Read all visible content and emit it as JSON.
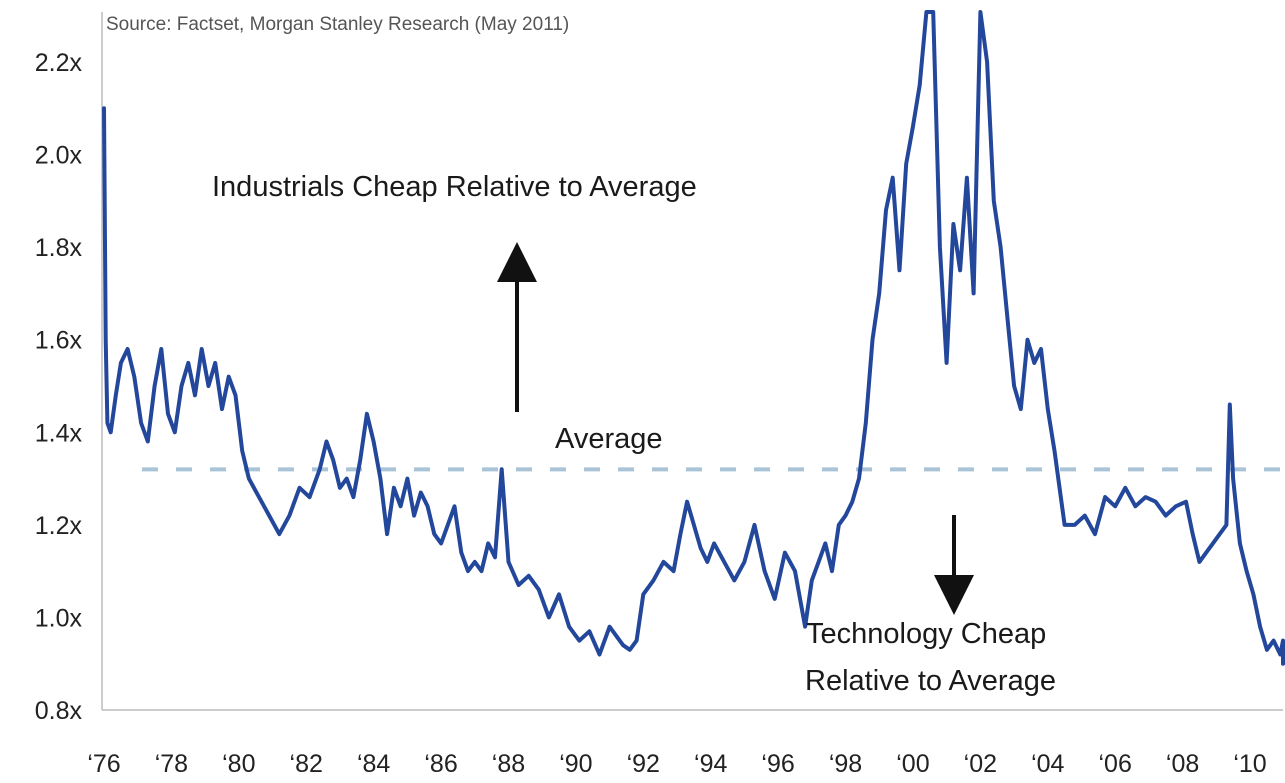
{
  "chart_data": {
    "type": "line",
    "source": "Source: Factset, Morgan Stanley Research (May 2011)",
    "xlabel": "",
    "ylabel": "",
    "x_range": [
      1976.0,
      2011.3
    ],
    "ylim": [
      0.8,
      2.3
    ],
    "y_ticks": [
      2.2,
      2.0,
      1.8,
      1.6,
      1.4,
      1.2,
      1.0,
      0.8
    ],
    "y_tick_labels": [
      "2.2x",
      "2.0x",
      "1.8x",
      "1.6x",
      "1.4x",
      "1.2x",
      "1.0x",
      "0.8x"
    ],
    "x_ticks": [
      1976,
      1978,
      1980,
      1982,
      1984,
      1986,
      1988,
      1990,
      1992,
      1994,
      1996,
      1998,
      2000,
      2002,
      2004,
      2006,
      2008,
      2010
    ],
    "x_tick_labels": [
      "‘76",
      "‘78",
      "‘80",
      "‘82",
      "‘84",
      "‘86",
      "‘88",
      "‘90",
      "‘92",
      "‘94",
      "‘96",
      "‘98",
      "‘00",
      "‘02",
      "‘04",
      "‘06",
      "‘08",
      "‘10"
    ],
    "average": 1.32,
    "line_color": "#23479b",
    "average_color": "#a9c4d6",
    "annotations": {
      "industrials": "Industrials Cheap Relative to Average",
      "average": "Average",
      "technology_line1": "Technology Cheap",
      "technology_line2": "Relative to Average"
    },
    "series": [
      {
        "x": [
          1976.0,
          1976.05,
          1976.1,
          1976.2,
          1976.35,
          1976.5,
          1976.7,
          1976.9,
          1977.1,
          1977.3,
          1977.5,
          1977.7,
          1977.9,
          1978.1,
          1978.3,
          1978.5,
          1978.7,
          1978.9,
          1979.1,
          1979.3,
          1979.5,
          1979.7,
          1979.9,
          1980.1,
          1980.3,
          1980.6,
          1980.9,
          1981.2,
          1981.5,
          1981.8,
          1982.1,
          1982.4,
          1982.6,
          1982.8,
          1983.0,
          1983.2,
          1983.4,
          1983.6,
          1983.8,
          1984.0,
          1984.2,
          1984.4,
          1984.6,
          1984.8,
          1985.0,
          1985.2,
          1985.4,
          1985.6,
          1985.8,
          1986.0,
          1986.2,
          1986.4,
          1986.6,
          1986.8,
          1987.0,
          1987.2,
          1987.4,
          1987.6,
          1987.8,
          1988.0,
          1988.3,
          1988.6,
          1988.9,
          1989.2,
          1989.5,
          1989.8,
          1990.1,
          1990.4,
          1990.7,
          1991.0,
          1991.2,
          1991.4,
          1991.6,
          1991.8,
          1992.0,
          1992.3,
          1992.6,
          1992.9,
          1993.1,
          1993.3,
          1993.5,
          1993.7,
          1993.9,
          1994.1,
          1994.4,
          1994.7,
          1995.0,
          1995.3,
          1995.6,
          1995.9,
          1996.2,
          1996.5,
          1996.8,
          1997.0,
          1997.2,
          1997.4,
          1997.6,
          1997.8,
          1998.0,
          1998.2,
          1998.4,
          1998.6,
          1998.8,
          1999.0,
          1999.2,
          1999.4,
          1999.6,
          1999.8,
          2000.0,
          2000.2,
          2000.4,
          2000.6,
          2000.8,
          2001.0,
          2001.2,
          2001.4,
          2001.6,
          2001.8,
          2002.0,
          2002.2,
          2002.4,
          2002.6,
          2002.8,
          2003.0,
          2003.2,
          2003.4,
          2003.6,
          2003.8,
          2004.0,
          2004.2,
          2004.5,
          2004.8,
          2005.1,
          2005.4,
          2005.7,
          2006.0,
          2006.3,
          2006.6,
          2006.9,
          2007.2,
          2007.5,
          2007.8,
          2008.1,
          2008.3,
          2008.5,
          2008.7,
          2008.9,
          2009.1,
          2009.3,
          2009.4,
          2009.5,
          2009.7,
          2009.9,
          2010.1,
          2010.3,
          2010.5,
          2010.7,
          2010.9,
          2011.1,
          2011.3
        ],
        "values": [
          2.1,
          1.6,
          1.42,
          1.4,
          1.48,
          1.55,
          1.58,
          1.52,
          1.42,
          1.38,
          1.5,
          1.58,
          1.44,
          1.4,
          1.5,
          1.55,
          1.48,
          1.58,
          1.5,
          1.55,
          1.45,
          1.52,
          1.48,
          1.36,
          1.3,
          1.26,
          1.22,
          1.18,
          1.22,
          1.28,
          1.26,
          1.32,
          1.38,
          1.34,
          1.28,
          1.3,
          1.26,
          1.34,
          1.44,
          1.38,
          1.3,
          1.18,
          1.28,
          1.24,
          1.3,
          1.22,
          1.27,
          1.24,
          1.18,
          1.16,
          1.2,
          1.24,
          1.14,
          1.1,
          1.12,
          1.1,
          1.16,
          1.13,
          1.32,
          1.12,
          1.07,
          1.09,
          1.06,
          1.0,
          1.05,
          0.98,
          0.95,
          0.97,
          0.92,
          0.98,
          0.96,
          0.94,
          0.93,
          0.95,
          1.05,
          1.08,
          1.12,
          1.1,
          1.18,
          1.25,
          1.2,
          1.15,
          1.12,
          1.16,
          1.12,
          1.08,
          1.12,
          1.2,
          1.1,
          1.04,
          1.14,
          1.1,
          0.98,
          1.08,
          1.12,
          1.16,
          1.1,
          1.2,
          1.22,
          1.25,
          1.3,
          1.42,
          1.6,
          1.7,
          1.88,
          1.95,
          1.75,
          1.98,
          2.06,
          2.15,
          2.35,
          2.45,
          1.8,
          1.55,
          1.85,
          1.75,
          1.95,
          1.7,
          2.35,
          2.2,
          1.9,
          1.8,
          1.65,
          1.5,
          1.45,
          1.6,
          1.55,
          1.58,
          1.45,
          1.36,
          1.2,
          1.2,
          1.22,
          1.18,
          1.26,
          1.24,
          1.28,
          1.24,
          1.26,
          1.25,
          1.22,
          1.24,
          1.25,
          1.18,
          1.12,
          1.14,
          1.16,
          1.18,
          1.2,
          1.46,
          1.3,
          1.16,
          1.1,
          1.05,
          0.98,
          0.93,
          0.95,
          0.92,
          0.95,
          0.9
        ]
      }
    ]
  }
}
